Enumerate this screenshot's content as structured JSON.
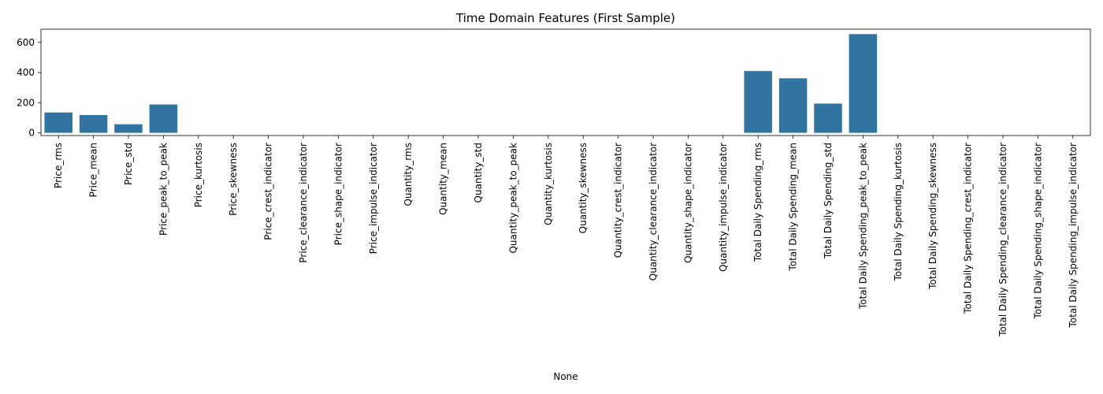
{
  "chart_data": {
    "type": "bar",
    "title": "Time Domain Features (First Sample)",
    "xlabel": "None",
    "ylabel": "",
    "ylim": [
      -18,
      688
    ],
    "yticks": [
      0,
      200,
      400,
      600
    ],
    "bar_color": "#3274a1",
    "grid": false,
    "categories": [
      "Price_rms",
      "Price_mean",
      "Price_std",
      "Price_peak_to_peak",
      "Price_kurtosis",
      "Price_skewness",
      "Price_crest_indicator",
      "Price_clearance_indicator",
      "Price_shape_indicator",
      "Price_impulse_indicator",
      "Quantity_rms",
      "Quantity_mean",
      "Quantity_std",
      "Quantity_peak_to_peak",
      "Quantity_kurtosis",
      "Quantity_skewness",
      "Quantity_crest_indicator",
      "Quantity_clearance_indicator",
      "Quantity_shape_indicator",
      "Quantity_impulse_indicator",
      "Total Daily Spending_rms",
      "Total Daily Spending_mean",
      "Total Daily Spending_std",
      "Total Daily Spending_peak_to_peak",
      "Total Daily Spending_kurtosis",
      "Total Daily Spending_skewness",
      "Total Daily Spending_crest_indicator",
      "Total Daily Spending_clearance_indicator",
      "Total Daily Spending_shape_indicator",
      "Total Daily Spending_impulse_indicator"
    ],
    "values": [
      135,
      118,
      57,
      188,
      0,
      0,
      0,
      0,
      0,
      0,
      0,
      0,
      0,
      0,
      0,
      0,
      0,
      0,
      0,
      0,
      410,
      362,
      194,
      655,
      0,
      0,
      0,
      0,
      0,
      0
    ]
  }
}
